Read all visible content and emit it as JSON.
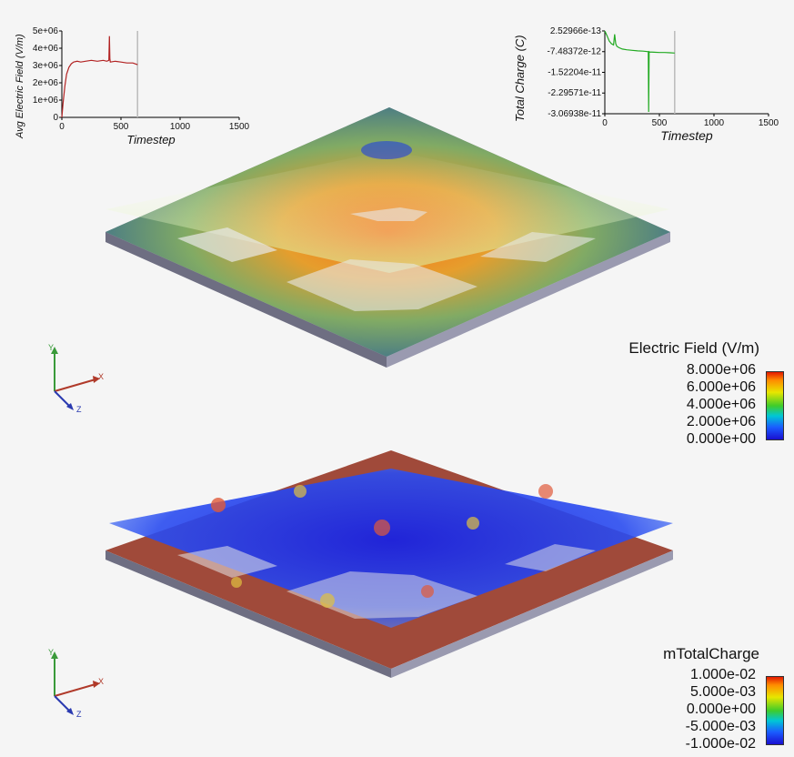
{
  "chart_data": [
    {
      "type": "line",
      "title": "",
      "xlabel": "Timestep",
      "ylabel": "Avg Electric Field (V/m)",
      "xlim": [
        0,
        1500
      ],
      "ylim": [
        0,
        5000000
      ],
      "x_ticks": [
        "0",
        "500",
        "1000",
        "1500"
      ],
      "y_ticks": [
        "0",
        "1e+06",
        "2e+06",
        "3e+06",
        "4e+06",
        "5e+06"
      ],
      "series_color": "#b22222",
      "marker_x": 640,
      "series": [
        {
          "name": "Avg Electric Field",
          "x": [
            0,
            10,
            25,
            40,
            60,
            80,
            100,
            130,
            160,
            200,
            250,
            300,
            350,
            380,
            398,
            402,
            406,
            410,
            450,
            500,
            550,
            600,
            640
          ],
          "y": [
            0,
            800000,
            1800000,
            2500000,
            2900000,
            3100000,
            3200000,
            3250000,
            3200000,
            3250000,
            3300000,
            3250000,
            3300000,
            3250000,
            3300000,
            4700000,
            3400000,
            3200000,
            3250000,
            3200000,
            3150000,
            3150000,
            3050000
          ]
        }
      ]
    },
    {
      "type": "line",
      "title": "",
      "xlabel": "Timestep",
      "ylabel": "Total Charge (C)",
      "xlim": [
        0,
        1500
      ],
      "ylim": [
        -3.06938e-11,
        2.52966e-13
      ],
      "x_ticks": [
        "0",
        "500",
        "1000",
        "1500"
      ],
      "y_ticks": [
        "2.52966e-13",
        "-7.48372e-12",
        "-1.52204e-11",
        "-2.29571e-11",
        "-3.06938e-11"
      ],
      "series_color": "#22aa22",
      "marker_x": 640,
      "series": [
        {
          "name": "Total Charge",
          "x": [
            0,
            20,
            40,
            60,
            80,
            90,
            100,
            110,
            130,
            160,
            200,
            250,
            300,
            350,
            398,
            402,
            406,
            410,
            450,
            500,
            550,
            600,
            640
          ],
          "y": [
            2.5e-13,
            -1.5e-12,
            -3.5e-12,
            -4.5e-12,
            -5e-12,
            -1e-12,
            -4.5e-12,
            -5.5e-12,
            -6e-12,
            -6.5e-12,
            -6.8e-12,
            -7e-12,
            -7.2e-12,
            -7.3e-12,
            -7.5e-12,
            -3e-11,
            -7.5e-12,
            -7.6e-12,
            -7.7e-12,
            -7.8e-12,
            -7.8e-12,
            -7.9e-12,
            -8e-12
          ]
        }
      ]
    }
  ],
  "legend_field": {
    "title": "Electric Field (V/m)",
    "labels": [
      "8.000e+06",
      "6.000e+06",
      "4.000e+06",
      "2.000e+06",
      "0.000e+00"
    ]
  },
  "legend_charge": {
    "title": "mTotalCharge",
    "labels": [
      "1.000e-02",
      "5.000e-03",
      "0.000e+00",
      "-5.000e-03",
      "-1.000e-02"
    ]
  },
  "axes_labels": {
    "x": "X",
    "y": "Y",
    "z": "Z"
  }
}
